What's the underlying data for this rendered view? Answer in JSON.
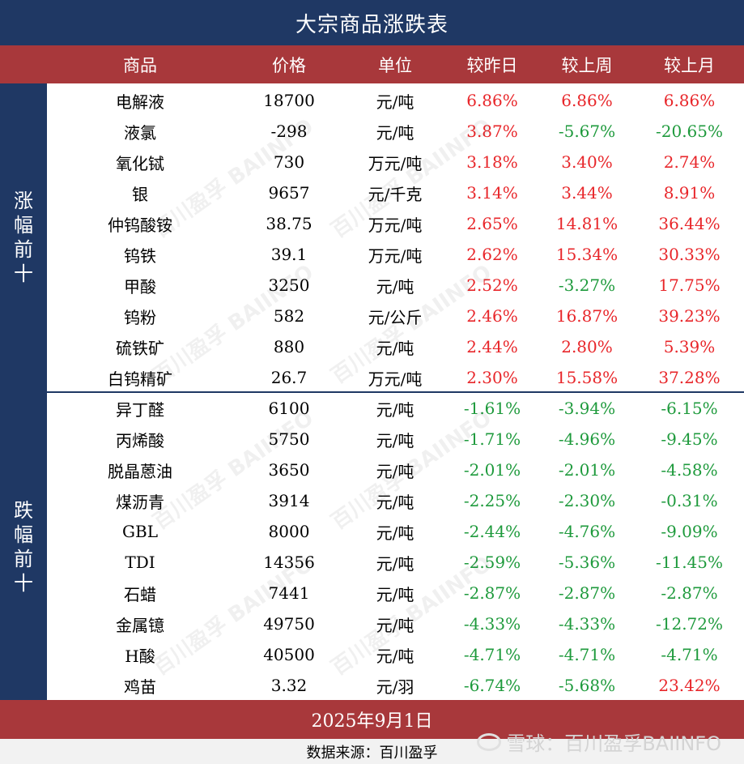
{
  "title": "大宗商品涨跌表",
  "headers": [
    "商品",
    "价格",
    "单位",
    "较昨日",
    "较上周",
    "较上月"
  ],
  "sections": {
    "gainers_label": [
      "涨",
      "幅",
      "前",
      "十"
    ],
    "losers_label": [
      "跌",
      "幅",
      "前",
      "十"
    ]
  },
  "rows": [
    {
      "name": "电解液",
      "price": "18700",
      "unit": "元/吨",
      "d": "6.86%",
      "w": "6.86%",
      "m": "6.86%"
    },
    {
      "name": "液氯",
      "price": "-298",
      "unit": "元/吨",
      "d": "3.87%",
      "w": "-5.67%",
      "m": "-20.65%"
    },
    {
      "name": "氧化铽",
      "price": "730",
      "unit": "万元/吨",
      "d": "3.18%",
      "w": "3.40%",
      "m": "2.74%"
    },
    {
      "name": "银",
      "price": "9657",
      "unit": "元/千克",
      "d": "3.14%",
      "w": "3.44%",
      "m": "8.91%"
    },
    {
      "name": "仲钨酸铵",
      "price": "38.75",
      "unit": "万元/吨",
      "d": "2.65%",
      "w": "14.81%",
      "m": "36.44%"
    },
    {
      "name": "钨铁",
      "price": "39.1",
      "unit": "万元/吨",
      "d": "2.62%",
      "w": "15.34%",
      "m": "30.33%"
    },
    {
      "name": "甲酸",
      "price": "3250",
      "unit": "元/吨",
      "d": "2.52%",
      "w": "-3.27%",
      "m": "17.75%"
    },
    {
      "name": "钨粉",
      "price": "582",
      "unit": "元/公斤",
      "d": "2.46%",
      "w": "16.87%",
      "m": "39.23%"
    },
    {
      "name": "硫铁矿",
      "price": "880",
      "unit": "元/吨",
      "d": "2.44%",
      "w": "2.80%",
      "m": "5.39%"
    },
    {
      "name": "白钨精矿",
      "price": "26.7",
      "unit": "万元/吨",
      "d": "2.30%",
      "w": "15.58%",
      "m": "37.28%"
    },
    {
      "name": "异丁醛",
      "price": "6100",
      "unit": "元/吨",
      "d": "-1.61%",
      "w": "-3.94%",
      "m": "-6.15%"
    },
    {
      "name": "丙烯酸",
      "price": "5750",
      "unit": "元/吨",
      "d": "-1.71%",
      "w": "-4.96%",
      "m": "-9.45%"
    },
    {
      "name": "脱晶蒽油",
      "price": "3650",
      "unit": "元/吨",
      "d": "-2.01%",
      "w": "-2.01%",
      "m": "-4.58%"
    },
    {
      "name": "煤沥青",
      "price": "3914",
      "unit": "元/吨",
      "d": "-2.25%",
      "w": "-2.30%",
      "m": "-0.31%"
    },
    {
      "name": "GBL",
      "price": "8000",
      "unit": "元/吨",
      "d": "-2.44%",
      "w": "-4.76%",
      "m": "-9.09%"
    },
    {
      "name": "TDI",
      "price": "14356",
      "unit": "元/吨",
      "d": "-2.59%",
      "w": "-5.36%",
      "m": "-11.45%"
    },
    {
      "name": "石蜡",
      "price": "7441",
      "unit": "元/吨",
      "d": "-2.87%",
      "w": "-2.87%",
      "m": "-2.87%"
    },
    {
      "name": "金属镱",
      "price": "49750",
      "unit": "元/吨",
      "d": "-4.33%",
      "w": "-4.33%",
      "m": "-12.72%"
    },
    {
      "name": "H酸",
      "price": "40500",
      "unit": "元/吨",
      "d": "-4.71%",
      "w": "-4.71%",
      "m": "-4.71%"
    },
    {
      "name": "鸡苗",
      "price": "3.32",
      "unit": "元/羽",
      "d": "-6.74%",
      "w": "-5.68%",
      "m": "23.42%"
    }
  ],
  "footer": {
    "date": "2025年9月1日",
    "source": "数据来源：百川盈孚"
  },
  "watermark": {
    "brand": "雪球：百川盈孚BAIINFO",
    "icon": "snowball-icon"
  },
  "colors": {
    "navy": "#1f3864",
    "red_header": "#a8383b",
    "positive": "#e8262a",
    "negative": "#1e9a3c"
  }
}
